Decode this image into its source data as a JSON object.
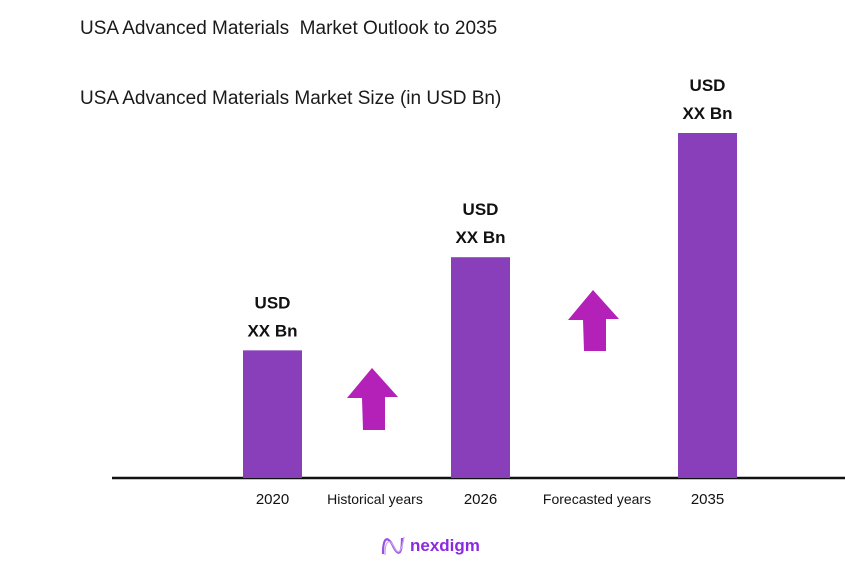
{
  "title": "USA Advanced Materials  Market Outlook to 2035",
  "subtitle": "USA Advanced Materials Market Size (in USD Bn)",
  "chart_data": {
    "type": "bar",
    "categories": [
      "2020",
      "2026",
      "2035"
    ],
    "relative_values": [
      0.37,
      0.64,
      1.0
    ],
    "data_labels": [
      [
        "USD",
        "XX Bn"
      ],
      [
        "USD",
        "XX Bn"
      ],
      [
        "USD",
        "XX Bn"
      ]
    ],
    "period_labels": [
      "Historical years",
      "Forecasted years"
    ],
    "grid": false,
    "bar_color": "#8a3fba",
    "arrow_color": "#b321b8"
  },
  "brand": "nexdigm"
}
